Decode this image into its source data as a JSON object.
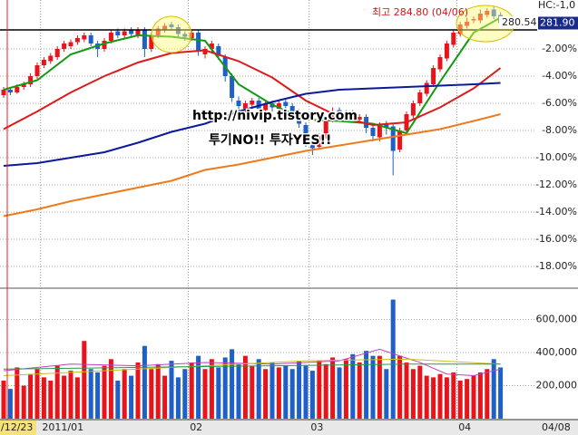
{
  "chart_data": [
    {
      "type": "candlestick",
      "categories": [
        null,
        null,
        null,
        null,
        null,
        null,
        "2011/01",
        null,
        null,
        null,
        null,
        null,
        null,
        null,
        null,
        null,
        null,
        null,
        null,
        null,
        null,
        null,
        null,
        null,
        null,
        null,
        null,
        null,
        "02",
        null,
        null,
        null,
        null,
        null,
        null,
        null,
        null,
        null,
        null,
        null,
        null,
        null,
        null,
        null,
        null,
        null,
        "03",
        null,
        null,
        null,
        null,
        null,
        null,
        null,
        null,
        null,
        null,
        null,
        null,
        null,
        null,
        null,
        null,
        null,
        null,
        null,
        null,
        null,
        "04",
        null,
        null,
        null,
        null,
        null,
        null
      ],
      "open": [
        -5.4,
        -5.0,
        -5.2,
        -4.8,
        -4.6,
        -4.0,
        -3.2,
        -2.9,
        -2.6,
        -2.0,
        -1.8,
        -1.5,
        -1.3,
        -1.0,
        -1.6,
        -2.0,
        -1.4,
        -0.7,
        -1.0,
        -0.6,
        -1.0,
        -0.6,
        -2.0,
        -1.0,
        -0.6,
        -0.2,
        -0.4,
        -0.9,
        -1.2,
        -0.8,
        -2.4,
        -2.0,
        -1.8,
        -2.6,
        -4.0,
        -5.8,
        -6.4,
        -6.1,
        -5.8,
        -6.5,
        -6.0,
        -6.4,
        -5.9,
        -6.2,
        -6.6,
        -7.6,
        -8.8,
        -9.2,
        -8.4,
        -7.2,
        -6.5,
        -6.9,
        -6.7,
        -7.2,
        -7.0,
        -7.8,
        -8.5,
        -7.5,
        -7.7,
        -9.4,
        -8.0,
        -6.9,
        -6.0,
        -5.3,
        -4.6,
        -3.5,
        -2.7,
        -1.7,
        -0.9,
        -0.3,
        0.1,
        0.1,
        0.5,
        0.9,
        0.5
      ],
      "high": [
        -4.8,
        -4.8,
        -4.6,
        -4.4,
        -3.8,
        -3.0,
        -2.6,
        -2.3,
        -1.8,
        -1.4,
        -1.3,
        -1.0,
        -0.8,
        -0.8,
        -1.4,
        -1.2,
        -0.6,
        -0.5,
        -0.5,
        -0.4,
        -0.4,
        -0.4,
        -0.8,
        -0.3,
        -0.1,
        0.0,
        -0.2,
        -0.7,
        -0.6,
        -0.6,
        -1.8,
        -1.4,
        -1.6,
        -2.4,
        -3.8,
        -5.5,
        -5.8,
        -5.6,
        -5.6,
        -5.8,
        -5.8,
        -5.8,
        -5.7,
        -6.0,
        -6.4,
        -7.4,
        -8.6,
        -8.2,
        -7.0,
        -6.3,
        -6.3,
        -6.5,
        -6.5,
        -6.8,
        -6.8,
        -7.6,
        -7.4,
        -7.3,
        -7.5,
        -7.8,
        -6.6,
        -5.8,
        -5.0,
        -4.3,
        -3.2,
        -2.4,
        -1.4,
        -0.6,
        0.0,
        0.3,
        0.4,
        0.9,
        1.0,
        1.1,
        0.7
      ],
      "low": [
        -5.6,
        -5.4,
        -5.3,
        -5.0,
        -4.8,
        -4.2,
        -3.4,
        -3.1,
        -2.8,
        -2.2,
        -2.0,
        -1.7,
        -1.5,
        -1.8,
        -2.6,
        -2.2,
        -1.6,
        -1.2,
        -1.2,
        -1.1,
        -1.2,
        -2.6,
        -2.2,
        -1.2,
        -0.8,
        -0.6,
        -1.1,
        -1.4,
        -1.4,
        -2.5,
        -2.7,
        -2.2,
        -2.8,
        -4.4,
        -5.9,
        -6.6,
        -6.7,
        -6.4,
        -6.7,
        -6.8,
        -6.6,
        -6.6,
        -6.5,
        -6.9,
        -7.8,
        -9.2,
        -9.8,
        -9.4,
        -8.6,
        -7.4,
        -7.1,
        -7.2,
        -7.3,
        -7.5,
        -8.2,
        -8.8,
        -8.8,
        -8.3,
        -11.3,
        -9.6,
        -8.2,
        -7.1,
        -6.2,
        -5.5,
        -4.8,
        -3.7,
        -2.9,
        -1.9,
        -1.1,
        -0.5,
        -0.1,
        -0.1,
        0.3,
        0.2,
        -0.3
      ],
      "close": [
        -5.0,
        -5.2,
        -4.8,
        -4.6,
        -4.0,
        -3.2,
        -2.8,
        -2.5,
        -2.0,
        -1.6,
        -1.5,
        -1.2,
        -1.0,
        -1.6,
        -2.0,
        -1.4,
        -0.8,
        -1.0,
        -0.7,
        -0.9,
        -0.6,
        -2.0,
        -1.0,
        -0.5,
        -0.3,
        -0.4,
        -0.9,
        -1.1,
        -0.8,
        -2.2,
        -2.0,
        -1.6,
        -2.5,
        -4.0,
        -5.6,
        -6.2,
        -6.0,
        -5.8,
        -6.4,
        -6.0,
        -6.3,
        -6.0,
        -6.2,
        -6.6,
        -7.5,
        -8.8,
        -9.3,
        -8.4,
        -7.2,
        -6.6,
        -6.8,
        -6.8,
        -7.0,
        -7.0,
        -7.8,
        -8.4,
        -7.6,
        -7.8,
        -9.5,
        -8.0,
        -6.8,
        -6.0,
        -5.2,
        -4.5,
        -3.4,
        -2.6,
        -1.6,
        -0.8,
        -0.2,
        0.0,
        0.2,
        0.6,
        0.8,
        0.4,
        -0.1
      ],
      "up_color": "#e8141c",
      "down_color": "#1f5fc8",
      "ylim": [
        -19.6,
        1.6
      ],
      "yticks": [
        {
          "value": -2,
          "label": "-2.00%"
        },
        {
          "value": -4,
          "label": "-4.00%"
        },
        {
          "value": -6,
          "label": "-6.00%"
        },
        {
          "value": -8,
          "label": "-8.00%"
        },
        {
          "value": -10,
          "label": "-10.00%"
        },
        {
          "value": -12,
          "label": "-12.00%"
        },
        {
          "value": -14,
          "label": "-14.00%"
        },
        {
          "value": -16,
          "label": "-16.00%"
        },
        {
          "value": -18,
          "label": "-18.00%"
        }
      ],
      "grid": true,
      "lines": [
        {
          "color": "#119911",
          "x": [
            0,
            5,
            10,
            15,
            20,
            25,
            30,
            35,
            40,
            45,
            50,
            55,
            60,
            65,
            70,
            74
          ],
          "values": [
            -5.0,
            -4.3,
            -2.4,
            -1.6,
            -1.0,
            -1.1,
            -1.4,
            -4.6,
            -6.1,
            -7.2,
            -7.3,
            -7.5,
            -8.2,
            -4.4,
            -0.8,
            0.3
          ]
        },
        {
          "color": "#dd1a1a",
          "x": [
            0,
            5,
            10,
            15,
            20,
            25,
            30,
            35,
            40,
            45,
            50,
            55,
            60,
            65,
            70,
            74
          ],
          "values": [
            -7.9,
            -6.6,
            -5.2,
            -4.0,
            -3.0,
            -2.3,
            -2.1,
            -2.9,
            -4.1,
            -5.8,
            -7.0,
            -7.6,
            -7.4,
            -6.3,
            -4.9,
            -3.4
          ]
        },
        {
          "color": "#0a1a9a",
          "x": [
            0,
            5,
            10,
            15,
            20,
            25,
            30,
            35,
            40,
            45,
            50,
            55,
            60,
            65,
            70,
            74
          ],
          "values": [
            -10.6,
            -10.4,
            -10.0,
            -9.6,
            -8.9,
            -8.1,
            -7.5,
            -6.6,
            -5.9,
            -5.3,
            -5.0,
            -4.9,
            -4.8,
            -4.7,
            -4.6,
            -4.5
          ]
        },
        {
          "color": "#ee7a1a",
          "x": [
            0,
            5,
            10,
            15,
            20,
            25,
            30,
            35,
            40,
            45,
            50,
            55,
            60,
            65,
            70,
            74
          ],
          "values": [
            -14.3,
            -13.8,
            -13.2,
            -12.7,
            -12.2,
            -11.7,
            -10.9,
            -10.5,
            -10.0,
            -9.5,
            -9.1,
            -8.7,
            -8.3,
            -7.9,
            -7.3,
            -6.8
          ]
        }
      ],
      "x_start_label": "/12/23",
      "x_end_label": "04/08",
      "corner_label": "HC:-1,0",
      "high_label": "최고 284.80 (04/06)",
      "reference_line": {
        "value": -0.6,
        "label": "280.54"
      },
      "last_label": "281.90"
    },
    {
      "type": "bar",
      "values": [
        230000,
        180000,
        310000,
        200000,
        270000,
        300000,
        250000,
        230000,
        320000,
        260000,
        290000,
        250000,
        470000,
        300000,
        280000,
        320000,
        360000,
        230000,
        300000,
        260000,
        340000,
        440000,
        300000,
        330000,
        260000,
        350000,
        250000,
        300000,
        340000,
        380000,
        300000,
        360000,
        310000,
        370000,
        420000,
        330000,
        380000,
        320000,
        360000,
        300000,
        340000,
        310000,
        320000,
        300000,
        350000,
        320000,
        290000,
        350000,
        330000,
        370000,
        310000,
        360000,
        390000,
        340000,
        410000,
        380000,
        380000,
        300000,
        720000,
        380000,
        340000,
        300000,
        320000,
        260000,
        250000,
        270000,
        250000,
        280000,
        230000,
        240000,
        260000,
        280000,
        300000,
        360000,
        310000
      ],
      "ylim": [
        0,
        778000
      ],
      "yticks": [
        {
          "value": 200000,
          "label": "200,000"
        },
        {
          "value": 400000,
          "label": "400,000"
        },
        {
          "value": 600000,
          "label": "600,000"
        }
      ],
      "grid": true,
      "lines": [
        {
          "color": "#c040c0",
          "x": [
            0,
            10,
            20,
            30,
            40,
            50,
            56,
            62,
            66,
            70,
            74
          ],
          "values": [
            290000,
            330000,
            320000,
            340000,
            330000,
            350000,
            420000,
            340000,
            270000,
            260000,
            300000
          ]
        },
        {
          "color": "#c8c020",
          "x": [
            0,
            15,
            30,
            45,
            60,
            74
          ],
          "values": [
            260000,
            290000,
            320000,
            350000,
            360000,
            330000
          ]
        },
        {
          "color": "#2a9a4a",
          "x": [
            0,
            20,
            40,
            60,
            74
          ],
          "values": [
            300000,
            310000,
            320000,
            330000,
            330000
          ]
        }
      ]
    }
  ],
  "watermark": [
    "http://nivip.tistory.com",
    "투기NO!! 투자YES!!"
  ]
}
